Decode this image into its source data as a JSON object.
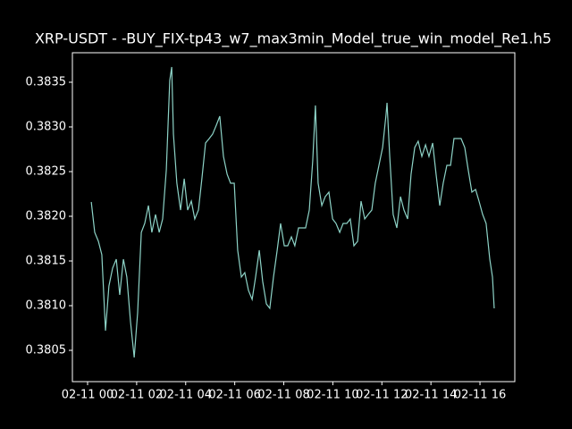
{
  "chart_data": {
    "type": "line",
    "title": "XRP-USDT - -BUY_FIX-tp43_w7_max3min_Model_true_win_model_Re1.h5",
    "x": [
      0.15,
      0.29,
      0.44,
      0.58,
      0.73,
      0.87,
      1.02,
      1.17,
      1.31,
      1.46,
      1.6,
      1.75,
      1.9,
      2.04,
      2.19,
      2.33,
      2.48,
      2.62,
      2.77,
      2.92,
      3.06,
      3.21,
      3.35,
      3.43,
      3.5,
      3.64,
      3.79,
      3.94,
      4.08,
      4.23,
      4.37,
      4.52,
      4.66,
      4.81,
      4.96,
      5.1,
      5.25,
      5.39,
      5.54,
      5.69,
      5.83,
      5.98,
      6.12,
      6.27,
      6.41,
      6.56,
      6.71,
      6.85,
      7.0,
      7.14,
      7.29,
      7.43,
      7.58,
      7.73,
      7.87,
      8.02,
      8.16,
      8.31,
      8.45,
      8.6,
      8.75,
      8.89,
      9.04,
      9.18,
      9.29,
      9.4,
      9.55,
      9.69,
      9.84,
      9.99,
      10.13,
      10.28,
      10.42,
      10.57,
      10.71,
      10.86,
      11.01,
      11.15,
      11.3,
      11.44,
      11.59,
      11.73,
      11.88,
      12.03,
      12.17,
      12.21,
      12.32,
      12.46,
      12.61,
      12.76,
      12.9,
      13.05,
      13.19,
      13.34,
      13.48,
      13.63,
      13.78,
      13.92,
      14.07,
      14.21,
      14.36,
      14.5,
      14.65,
      14.8,
      14.94,
      15.09,
      15.23,
      15.38,
      15.52,
      15.67,
      15.82,
      15.96,
      16.11,
      16.25,
      16.4,
      16.51,
      16.58
    ],
    "series": [
      {
        "color": "#8dd3c7",
        "values": [
          0.38216,
          0.38182,
          0.38172,
          0.38157,
          0.38072,
          0.38122,
          0.38142,
          0.38152,
          0.38112,
          0.38152,
          0.38132,
          0.38082,
          0.38042,
          0.38092,
          0.38182,
          0.38192,
          0.38212,
          0.38182,
          0.38202,
          0.38182,
          0.38197,
          0.38252,
          0.38352,
          0.38367,
          0.38292,
          0.38237,
          0.38207,
          0.38242,
          0.38207,
          0.38217,
          0.38197,
          0.38207,
          0.38242,
          0.38282,
          0.38287,
          0.38292,
          0.38302,
          0.38312,
          0.38267,
          0.38247,
          0.38237,
          0.38237,
          0.38162,
          0.38132,
          0.38137,
          0.38117,
          0.38107,
          0.38132,
          0.38162,
          0.38127,
          0.38102,
          0.38097,
          0.38132,
          0.38162,
          0.38192,
          0.38167,
          0.38167,
          0.38177,
          0.38167,
          0.38187,
          0.38187,
          0.38187,
          0.38207,
          0.38262,
          0.38324,
          0.38237,
          0.38212,
          0.38222,
          0.38227,
          0.38197,
          0.38192,
          0.38182,
          0.38192,
          0.38192,
          0.38197,
          0.38167,
          0.38172,
          0.38217,
          0.38197,
          0.38202,
          0.38207,
          0.38237,
          0.38257,
          0.38277,
          0.38314,
          0.38327,
          0.38267,
          0.38202,
          0.38187,
          0.38222,
          0.38207,
          0.38197,
          0.38247,
          0.38277,
          0.38284,
          0.38267,
          0.3828,
          0.38267,
          0.38282,
          0.38247,
          0.38212,
          0.38237,
          0.38257,
          0.38257,
          0.38287,
          0.38287,
          0.38287,
          0.38277,
          0.38252,
          0.38227,
          0.3823,
          0.38217,
          0.38202,
          0.38192,
          0.38152,
          0.38132,
          0.38097
        ]
      }
    ],
    "xlim": [
      -0.62,
      17.42
    ],
    "xticks": [
      {
        "value": 0,
        "label": "02-11 00"
      },
      {
        "value": 2,
        "label": "02-11 02"
      },
      {
        "value": 4,
        "label": "02-11 04"
      },
      {
        "value": 6,
        "label": "02-11 06"
      },
      {
        "value": 8,
        "label": "02-11 08"
      },
      {
        "value": 10,
        "label": "02-11 10"
      },
      {
        "value": 12,
        "label": "02-11 12"
      },
      {
        "value": 14,
        "label": "02-11 14"
      },
      {
        "value": 16,
        "label": "02-11 16"
      }
    ],
    "ylim": [
      0.38015,
      0.38383
    ],
    "yticks": [
      0.3805,
      {
        "value": 0.381,
        "label": "0.3810"
      },
      0.3815,
      {
        "value": 0.382,
        "label": "0.3820"
      },
      0.3825,
      {
        "value": 0.383,
        "label": "0.3830"
      },
      0.3835
    ]
  }
}
